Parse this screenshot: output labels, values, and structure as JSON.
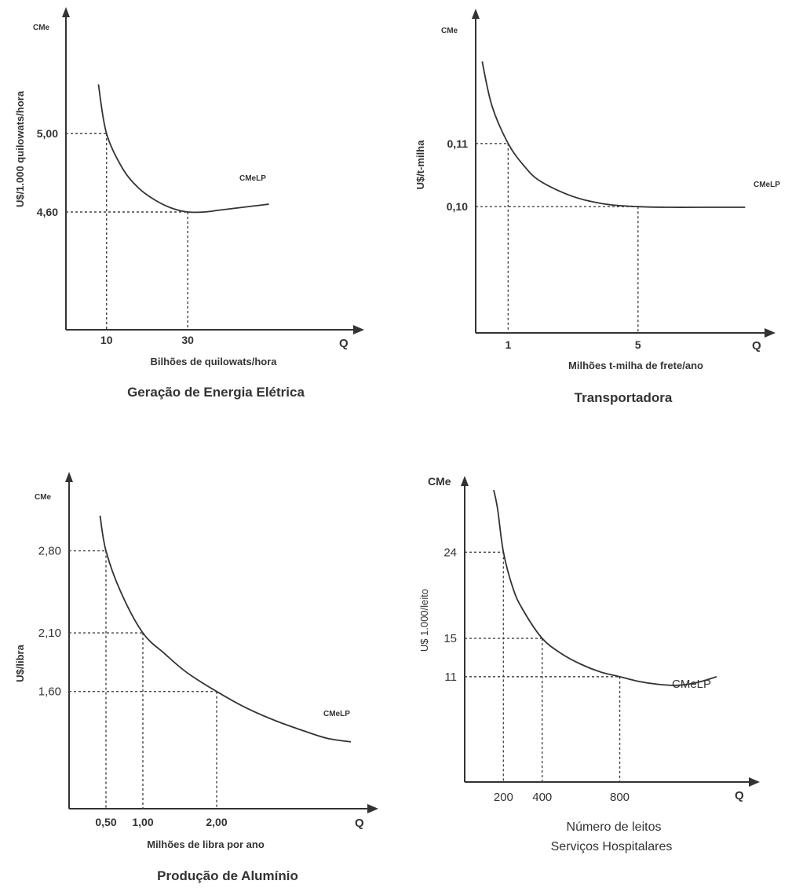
{
  "chart_data": [
    {
      "type": "line",
      "title": "Geração de Energia Elétrica",
      "xlabel": "Bilhões de quilowats/hora",
      "ylabel": "U$/1.000 quilowats/hora",
      "y_axis_title": "CMe",
      "x_axis_title": "Q",
      "curve_label": "CMeLP",
      "xlim": [
        0,
        70
      ],
      "ylim": [
        4.0,
        5.6
      ],
      "x_ticks": [
        10,
        30
      ],
      "x_tick_labels": [
        "10",
        "30"
      ],
      "y_ticks": [
        4.6,
        5.0
      ],
      "y_tick_labels": [
        "4,60",
        "5,00"
      ],
      "highlight_points": [
        {
          "x": 10,
          "y": 5.0
        },
        {
          "x": 30,
          "y": 4.6
        }
      ],
      "series": [
        {
          "name": "CMeLP",
          "x": [
            8,
            10,
            14,
            18,
            22,
            26,
            30,
            34,
            38,
            42,
            46,
            50
          ],
          "y": [
            5.25,
            5.0,
            4.82,
            4.72,
            4.66,
            4.62,
            4.6,
            4.6,
            4.61,
            4.62,
            4.63,
            4.64
          ]
        }
      ]
    },
    {
      "type": "line",
      "title": "Transportadora",
      "xlabel": "Milhões t-milha de frete/ano",
      "ylabel": "U$/t-milha",
      "y_axis_title": "CMe",
      "x_axis_title": "Q",
      "curve_label": "CMeLP",
      "xlim": [
        0,
        8.8
      ],
      "ylim": [
        0.08,
        0.13
      ],
      "x_ticks": [
        1,
        5
      ],
      "x_tick_labels": [
        "1",
        "5"
      ],
      "y_ticks": [
        0.1,
        0.11
      ],
      "y_tick_labels": [
        "0,10",
        "0,11"
      ],
      "highlight_points": [
        {
          "x": 1,
          "y": 0.11
        },
        {
          "x": 5,
          "y": 0.1
        }
      ],
      "series": [
        {
          "name": "CMeLP",
          "x": [
            0.2,
            0.5,
            1,
            1.5,
            2,
            3,
            4,
            5,
            6,
            7,
            8.3
          ],
          "y": [
            0.123,
            0.116,
            0.11,
            0.1064,
            0.104,
            0.1016,
            0.1004,
            0.1,
            0.0999,
            0.0999,
            0.0999
          ]
        }
      ]
    },
    {
      "type": "line",
      "title": "Produção de Alumínio",
      "xlabel": "Milhões de libra por ano",
      "ylabel": "U$/libra",
      "y_axis_title": "CMe",
      "x_axis_title": "Q",
      "curve_label": "CMeLP",
      "xlim": [
        0,
        4.0
      ],
      "ylim": [
        0.6,
        3.4
      ],
      "x_ticks": [
        0.5,
        1.0,
        2.0
      ],
      "x_tick_labels": [
        "0,50",
        "1,00",
        "2,00"
      ],
      "y_ticks": [
        1.6,
        2.1,
        2.8
      ],
      "y_tick_labels": [
        "1,60",
        "2,10",
        "2,80"
      ],
      "highlight_points": [
        {
          "x": 0.5,
          "y": 2.8
        },
        {
          "x": 1.0,
          "y": 2.1
        },
        {
          "x": 2.0,
          "y": 1.6
        }
      ],
      "series": [
        {
          "name": "CMeLP",
          "x": [
            0.42,
            0.5,
            0.7,
            1.0,
            1.3,
            1.6,
            2.0,
            2.4,
            2.8,
            3.2,
            3.5,
            3.82
          ],
          "y": [
            3.1,
            2.8,
            2.45,
            2.1,
            1.92,
            1.76,
            1.6,
            1.46,
            1.35,
            1.26,
            1.2,
            1.17
          ]
        }
      ]
    },
    {
      "type": "line",
      "title": "Serviços Hospitalares",
      "xlabel": "Número de leitos",
      "ylabel": "U$ 1.000/leito",
      "y_axis_title": "CMe",
      "x_axis_title": "Q",
      "curve_label": "CMeLP",
      "xlim": [
        0,
        1450
      ],
      "ylim": [
        0,
        31
      ],
      "x_ticks": [
        200,
        400,
        800
      ],
      "x_tick_labels": [
        "200",
        "400",
        "800"
      ],
      "y_ticks": [
        11,
        15,
        24
      ],
      "y_tick_labels": [
        "11",
        "15",
        "24"
      ],
      "highlight_points": [
        {
          "x": 200,
          "y": 24
        },
        {
          "x": 400,
          "y": 15
        },
        {
          "x": 800,
          "y": 11
        }
      ],
      "series": [
        {
          "name": "CMeLP",
          "x": [
            150,
            170,
            200,
            250,
            300,
            400,
            500,
            600,
            700,
            800,
            900,
            1000,
            1100,
            1200,
            1300
          ],
          "y": [
            30.5,
            28.5,
            24,
            20.2,
            18.0,
            15.0,
            13.4,
            12.3,
            11.5,
            11.0,
            10.5,
            10.2,
            10.1,
            10.4,
            11.0
          ]
        }
      ]
    }
  ]
}
